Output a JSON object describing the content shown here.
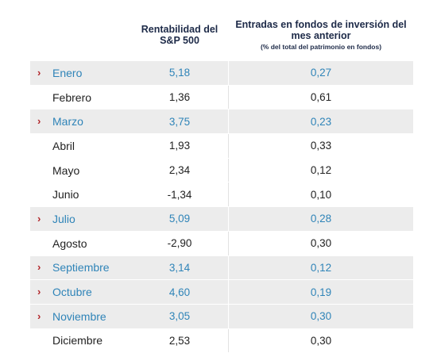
{
  "headers": {
    "col1": "Rentabilidad del S&P 500",
    "col2_title": "Entradas en fondos de inversión del mes anterior",
    "col2_sub": "(% del total del patrimonio en fondos)"
  },
  "colors": {
    "highlight_text": "#2f84b8",
    "arrow": "#b2272b",
    "header_text": "#1d2a48",
    "highlight_bg": "#ececec"
  },
  "rows": [
    {
      "month": "Enero",
      "sp500": "5,18",
      "flows": "0,27",
      "highlight": true
    },
    {
      "month": "Febrero",
      "sp500": "1,36",
      "flows": "0,61",
      "highlight": false
    },
    {
      "month": "Marzo",
      "sp500": "3,75",
      "flows": "0,23",
      "highlight": true
    },
    {
      "month": "Abril",
      "sp500": "1,93",
      "flows": "0,33",
      "highlight": false
    },
    {
      "month": "Mayo",
      "sp500": "2,34",
      "flows": "0,12",
      "highlight": false
    },
    {
      "month": "Junio",
      "sp500": "-1,34",
      "flows": "0,10",
      "highlight": false
    },
    {
      "month": "Julio",
      "sp500": "5,09",
      "flows": "0,28",
      "highlight": true
    },
    {
      "month": "Agosto",
      "sp500": "-2,90",
      "flows": "0,30",
      "highlight": false
    },
    {
      "month": "Septiembre",
      "sp500": "3,14",
      "flows": "0,12",
      "highlight": true
    },
    {
      "month": "Octubre",
      "sp500": "4,60",
      "flows": "0,19",
      "highlight": true
    },
    {
      "month": "Noviembre",
      "sp500": "3,05",
      "flows": "0,30",
      "highlight": true
    },
    {
      "month": "Diciembre",
      "sp500": "2,53",
      "flows": "0,30",
      "highlight": false
    }
  ]
}
